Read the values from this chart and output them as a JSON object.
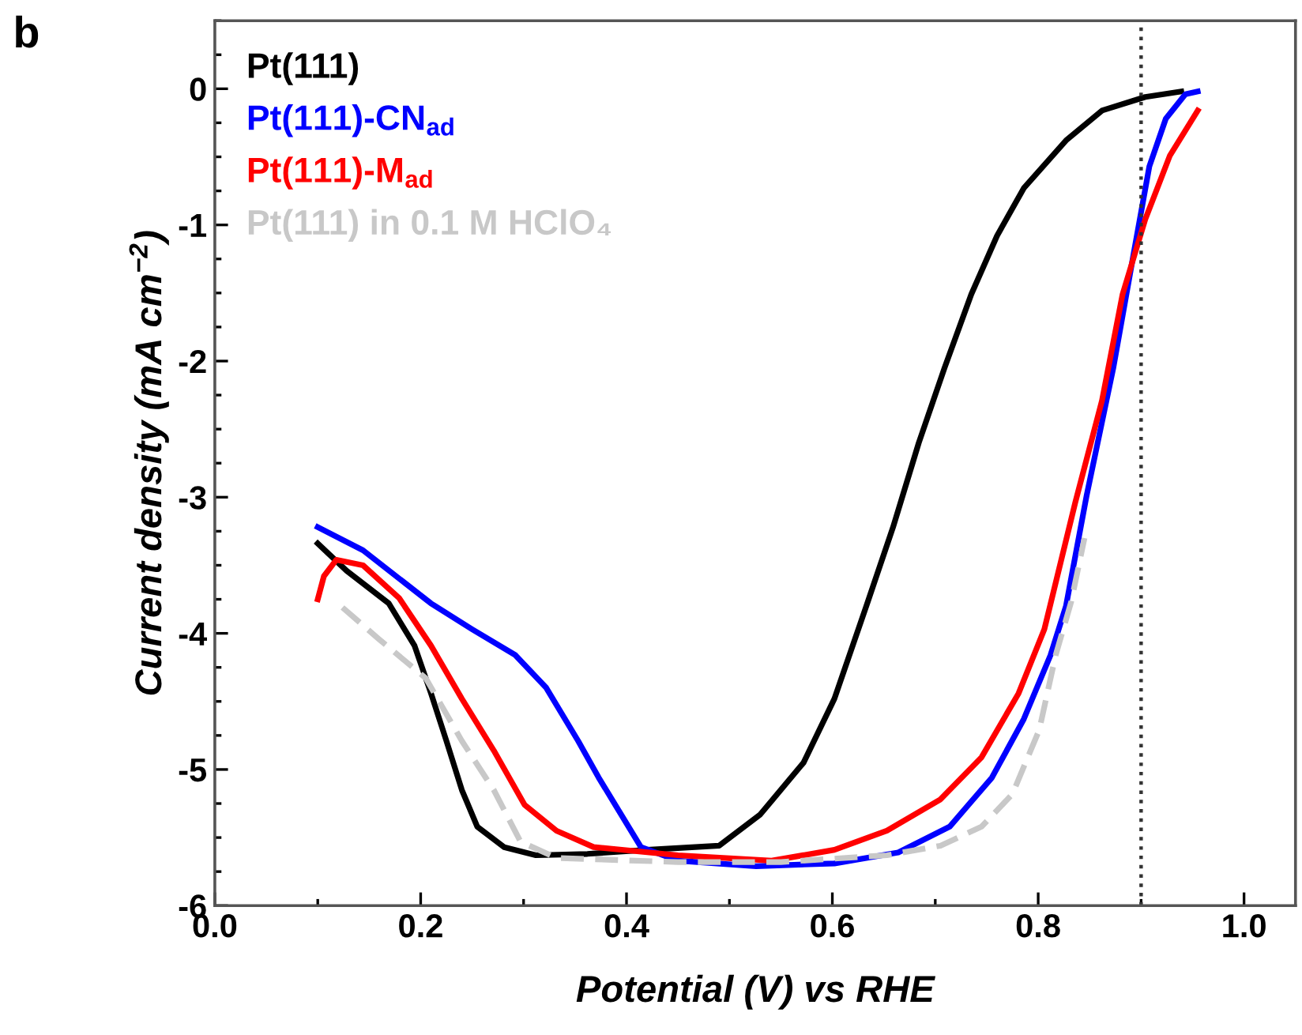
{
  "chart_data": {
    "type": "line",
    "title": "b",
    "xlabel": "Potential (V) vs RHE",
    "ylabel": "Current density (mA cm$^{−2}$)",
    "xlim": [
      0.0,
      1.05
    ],
    "ylim": [
      -6,
      0.5
    ],
    "xticks": [
      {
        "value": 0.0,
        "label": "0.0"
      },
      {
        "value": 0.2,
        "label": "0.2"
      },
      {
        "value": 0.4,
        "label": "0.4"
      },
      {
        "value": 0.6,
        "label": "0.6"
      },
      {
        "value": 0.8,
        "label": "0.8"
      },
      {
        "value": 1.0,
        "label": "1.0"
      }
    ],
    "yticks": [
      -6,
      -5,
      -4,
      -3,
      -2,
      -1,
      0
    ],
    "grid": false,
    "legend": "top left",
    "marker": "none",
    "ref_lines": [
      {
        "axis": "x",
        "value": 0.9,
        "label": null,
        "color": "#333333",
        "line_style": "dotted"
      }
    ],
    "series": [
      {
        "name": "Pt(111)",
        "color": "#000000",
        "line_style": "solid",
        "x": [
          0.1,
          0.128,
          0.169,
          0.194,
          0.21,
          0.225,
          0.24,
          0.255,
          0.281,
          0.312,
          0.362,
          0.42,
          0.49,
          0.53,
          0.572,
          0.602,
          0.633,
          0.659,
          0.684,
          0.709,
          0.735,
          0.76,
          0.786,
          0.827,
          0.862,
          0.904,
          0.939
        ],
        "values": [
          -3.34,
          -3.54,
          -3.78,
          -4.09,
          -4.44,
          -4.79,
          -5.15,
          -5.42,
          -5.57,
          -5.63,
          -5.62,
          -5.59,
          -5.56,
          -5.33,
          -4.95,
          -4.48,
          -3.8,
          -3.22,
          -2.6,
          -2.05,
          -1.51,
          -1.08,
          -0.73,
          -0.38,
          -0.16,
          -0.06,
          -0.02
        ]
      },
      {
        "name": "Pt(111)-CN$_{ad}$",
        "color": "#0000ff",
        "line_style": "solid",
        "x": [
          0.1,
          0.144,
          0.21,
          0.25,
          0.292,
          0.322,
          0.353,
          0.373,
          0.414,
          0.45,
          0.526,
          0.602,
          0.664,
          0.714,
          0.755,
          0.786,
          0.812,
          0.827,
          0.847,
          0.873,
          0.893,
          0.908,
          0.924,
          0.943,
          0.955
        ],
        "values": [
          -3.22,
          -3.39,
          -3.78,
          -3.97,
          -4.16,
          -4.4,
          -4.79,
          -5.06,
          -5.57,
          -5.67,
          -5.71,
          -5.69,
          -5.61,
          -5.42,
          -5.06,
          -4.63,
          -4.16,
          -3.8,
          -2.99,
          -2.05,
          -1.2,
          -0.57,
          -0.22,
          -0.04,
          -0.02
        ]
      },
      {
        "name": "Pt(111)-M$_{ad}$",
        "color": "#ff0000",
        "line_style": "solid",
        "x": [
          0.1,
          0.106,
          0.118,
          0.144,
          0.179,
          0.21,
          0.24,
          0.271,
          0.301,
          0.332,
          0.368,
          0.45,
          0.541,
          0.602,
          0.653,
          0.705,
          0.745,
          0.781,
          0.806,
          0.836,
          0.862,
          0.882,
          0.904,
          0.928,
          0.955
        ],
        "values": [
          -3.75,
          -3.58,
          -3.46,
          -3.5,
          -3.74,
          -4.09,
          -4.48,
          -4.86,
          -5.26,
          -5.45,
          -5.57,
          -5.63,
          -5.67,
          -5.59,
          -5.45,
          -5.22,
          -4.91,
          -4.44,
          -3.97,
          -3.04,
          -2.29,
          -1.51,
          -0.96,
          -0.49,
          -0.16
        ]
      },
      {
        "name": "Pt(111) in 0.1 M HClO₄",
        "color": "#c8c8c8",
        "line_style": "dashed",
        "x": [
          0.124,
          0.159,
          0.205,
          0.24,
          0.271,
          0.297,
          0.332,
          0.45,
          0.55,
          0.653,
          0.705,
          0.745,
          0.775,
          0.801,
          0.817,
          0.832,
          0.845
        ],
        "values": [
          -3.81,
          -4.04,
          -4.33,
          -4.79,
          -5.15,
          -5.53,
          -5.65,
          -5.68,
          -5.68,
          -5.63,
          -5.56,
          -5.42,
          -5.18,
          -4.71,
          -4.16,
          -3.77,
          -3.3
        ]
      }
    ]
  }
}
